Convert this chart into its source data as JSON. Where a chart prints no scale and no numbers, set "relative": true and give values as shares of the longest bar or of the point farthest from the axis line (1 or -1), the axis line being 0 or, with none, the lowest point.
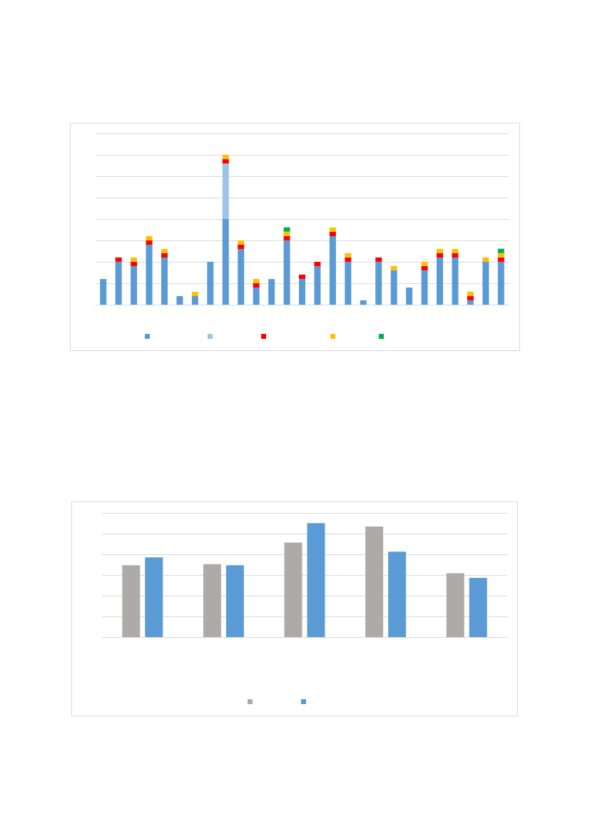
{
  "chart_data": [
    {
      "type": "bar",
      "stacked": true,
      "relative": true,
      "grid": "y",
      "categories": [
        null,
        null,
        null,
        null,
        null,
        null,
        null,
        null,
        null,
        null,
        null,
        null,
        null,
        null,
        null,
        null,
        null,
        null,
        null,
        null,
        null,
        null,
        null,
        null,
        null,
        null,
        null
      ],
      "series": [
        {
          "color": "#5b9bd5",
          "values": [
            0.171,
            0.286,
            0.257,
            0.4,
            0.314,
            0.057,
            0.057,
            0.286,
            0.571,
            0.371,
            0.114,
            0.171,
            0.429,
            0.171,
            0.257,
            0.457,
            0.286,
            0.029,
            0.286,
            0.229,
            0.114,
            0.229,
            0.314,
            0.314,
            0.029,
            0.286,
            0.286
          ]
        },
        {
          "color": "#9dc3e6",
          "values": [
            null,
            null,
            null,
            null,
            null,
            null,
            null,
            null,
            0.371,
            null,
            null,
            null,
            null,
            null,
            null,
            null,
            null,
            null,
            null,
            null,
            null,
            null,
            null,
            null,
            null,
            null,
            null
          ]
        },
        {
          "color": "#ff0000",
          "values": [
            null,
            0.029,
            0.029,
            0.029,
            0.029,
            null,
            null,
            null,
            0.029,
            0.029,
            0.029,
            null,
            0.029,
            0.029,
            0.029,
            0.029,
            0.029,
            null,
            0.029,
            null,
            null,
            0.029,
            0.029,
            0.029,
            0.029,
            null,
            0.029
          ]
        },
        {
          "color": "#ffc000",
          "values": [
            null,
            null,
            0.029,
            0.029,
            0.029,
            null,
            0.029,
            null,
            0.029,
            0.029,
            0.029,
            null,
            0.029,
            null,
            null,
            0.029,
            0.029,
            null,
            null,
            0.029,
            null,
            0.029,
            0.029,
            0.029,
            0.029,
            0.029,
            0.029
          ]
        },
        {
          "color": "#00b050",
          "values": [
            null,
            null,
            null,
            null,
            null,
            null,
            null,
            null,
            null,
            null,
            null,
            null,
            0.029,
            null,
            null,
            null,
            null,
            null,
            null,
            null,
            null,
            null,
            null,
            null,
            null,
            null,
            0.029
          ]
        }
      ]
    },
    {
      "type": "bar",
      "relative": true,
      "grid": "y",
      "categories": [
        null,
        null,
        null,
        null,
        null
      ],
      "series": [
        {
          "color": "#aeaaaa",
          "values": [
            0.63,
            0.64,
            0.83,
            0.97,
            0.56
          ]
        },
        {
          "color": "#5b9bd5",
          "values": [
            0.7,
            0.63,
            1,
            0.75,
            0.52
          ]
        }
      ]
    }
  ]
}
